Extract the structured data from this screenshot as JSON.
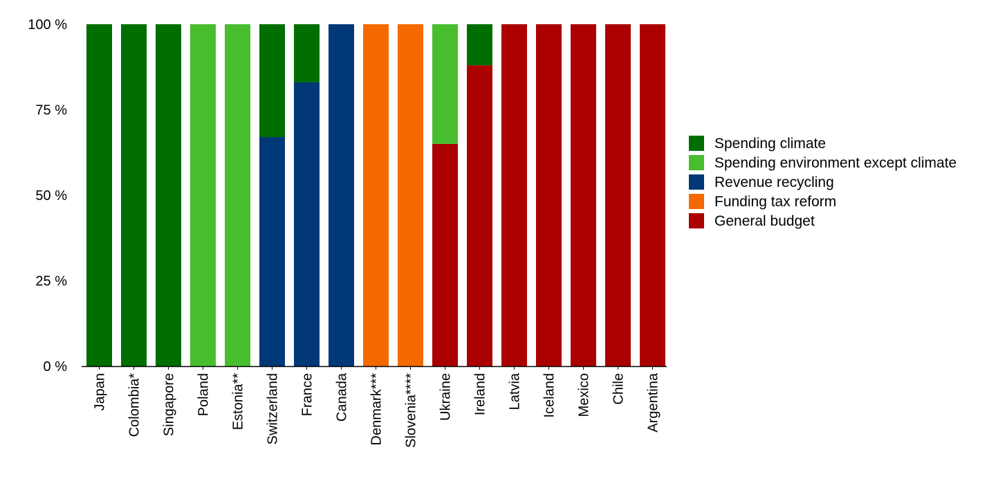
{
  "chart_data": {
    "type": "bar",
    "stacked": true,
    "percent": true,
    "title": "",
    "xlabel": "",
    "ylabel": "",
    "ylim": [
      0,
      100
    ],
    "y_ticks": [
      0,
      25,
      50,
      75,
      100
    ],
    "y_tick_labels": [
      "0 %",
      "25 %",
      "50 %",
      "75 %",
      "100 %"
    ],
    "grid": false,
    "legend_position": "right",
    "categories": [
      "Japan",
      "Colombia*",
      "Singapore",
      "Poland",
      "Estonia**",
      "Switzerland",
      "France",
      "Canada",
      "Denmark***",
      "Slovenia****",
      "Ukraine",
      "Ireland",
      "Latvia",
      "Iceland",
      "Mexico",
      "Chile",
      "Argentina"
    ],
    "series": [
      {
        "name": "General budget",
        "color": "#aa0000",
        "values": [
          0,
          0,
          0,
          0,
          0,
          0,
          0,
          0,
          0,
          0,
          65,
          88,
          100,
          100,
          100,
          100,
          100
        ]
      },
      {
        "name": "Funding tax reform",
        "color": "#f56a00",
        "values": [
          0,
          0,
          0,
          0,
          0,
          0,
          0,
          0,
          100,
          100,
          0,
          0,
          0,
          0,
          0,
          0,
          0
        ]
      },
      {
        "name": "Revenue recycling",
        "color": "#003878",
        "values": [
          0,
          0,
          0,
          0,
          0,
          67,
          83,
          100,
          0,
          0,
          0,
          0,
          0,
          0,
          0,
          0,
          0
        ]
      },
      {
        "name": "Spending environment except climate",
        "color": "#48be2f",
        "values": [
          0,
          0,
          0,
          100,
          100,
          0,
          0,
          0,
          0,
          0,
          35,
          0,
          0,
          0,
          0,
          0,
          0
        ]
      },
      {
        "name": "Spending climate",
        "color": "#006e00",
        "values": [
          100,
          100,
          100,
          0,
          0,
          33,
          17,
          0,
          0,
          0,
          0,
          12,
          0,
          0,
          0,
          0,
          0
        ]
      }
    ],
    "legend_order": [
      "Spending climate",
      "Spending environment except climate",
      "Revenue recycling",
      "Funding tax reform",
      "General budget"
    ]
  }
}
